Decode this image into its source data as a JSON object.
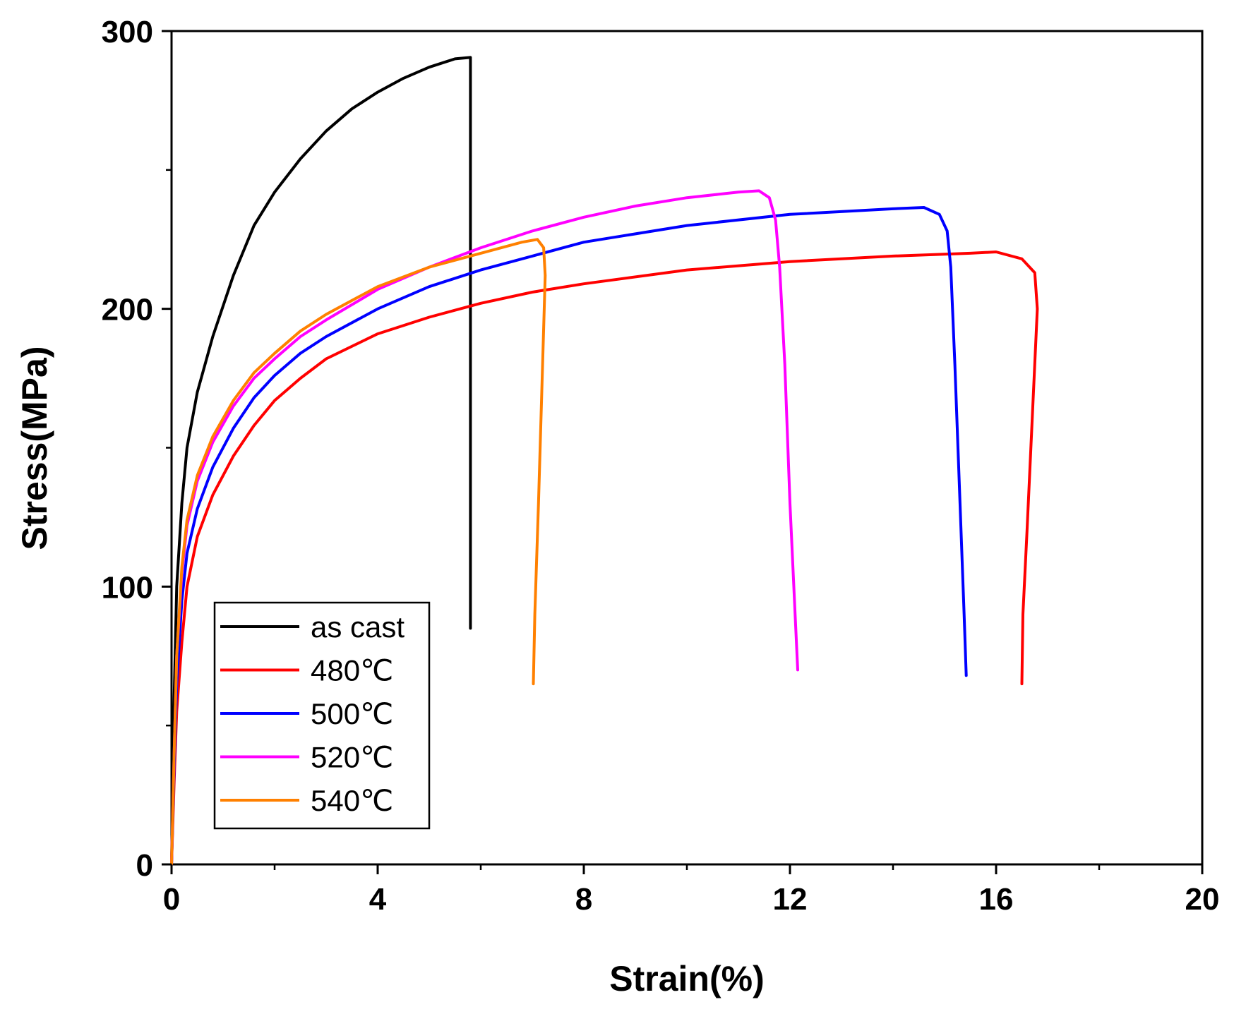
{
  "chart_data": {
    "type": "line",
    "title": "",
    "xlabel": "Strain(%)",
    "ylabel": "Stress(MPa)",
    "xlim": [
      0,
      20
    ],
    "ylim": [
      0,
      300
    ],
    "x_ticks": [
      0,
      4,
      8,
      12,
      16,
      20
    ],
    "x_tick_labels": [
      "0",
      "4",
      "8",
      "12",
      "16",
      "20"
    ],
    "y_ticks": [
      0,
      100,
      200,
      300
    ],
    "y_tick_labels": [
      "0",
      "100",
      "200",
      "300"
    ],
    "grid": false,
    "legend_position": "bottom-left",
    "series": [
      {
        "name": "as cast",
        "color": "#000000",
        "points": [
          [
            0,
            0
          ],
          [
            0.05,
            60
          ],
          [
            0.1,
            100
          ],
          [
            0.2,
            130
          ],
          [
            0.3,
            150
          ],
          [
            0.5,
            170
          ],
          [
            0.8,
            190
          ],
          [
            1.2,
            212
          ],
          [
            1.6,
            230
          ],
          [
            2.0,
            242
          ],
          [
            2.5,
            254
          ],
          [
            3.0,
            264
          ],
          [
            3.5,
            272
          ],
          [
            4.0,
            278
          ],
          [
            4.5,
            283
          ],
          [
            5.0,
            287
          ],
          [
            5.5,
            290
          ],
          [
            5.8,
            290.5
          ],
          [
            5.8,
            85
          ]
        ]
      },
      {
        "name": "480℃",
        "color": "#ff0000",
        "points": [
          [
            0,
            0
          ],
          [
            0.05,
            30
          ],
          [
            0.1,
            55
          ],
          [
            0.2,
            80
          ],
          [
            0.3,
            100
          ],
          [
            0.5,
            118
          ],
          [
            0.8,
            133
          ],
          [
            1.2,
            147
          ],
          [
            1.6,
            158
          ],
          [
            2.0,
            167
          ],
          [
            2.5,
            175
          ],
          [
            3.0,
            182
          ],
          [
            4.0,
            191
          ],
          [
            5.0,
            197
          ],
          [
            6.0,
            202
          ],
          [
            7.0,
            206
          ],
          [
            8.0,
            209
          ],
          [
            10.0,
            214
          ],
          [
            12.0,
            217
          ],
          [
            14.0,
            219
          ],
          [
            15.5,
            220
          ],
          [
            16.0,
            220.5
          ],
          [
            16.5,
            218
          ],
          [
            16.75,
            213
          ],
          [
            16.8,
            200
          ],
          [
            16.7,
            160
          ],
          [
            16.6,
            120
          ],
          [
            16.52,
            90
          ],
          [
            16.5,
            65
          ]
        ]
      },
      {
        "name": "500℃",
        "color": "#0000ff",
        "points": [
          [
            0,
            0
          ],
          [
            0.05,
            35
          ],
          [
            0.1,
            65
          ],
          [
            0.2,
            95
          ],
          [
            0.3,
            112
          ],
          [
            0.5,
            128
          ],
          [
            0.8,
            143
          ],
          [
            1.2,
            157
          ],
          [
            1.6,
            168
          ],
          [
            2.0,
            176
          ],
          [
            2.5,
            184
          ],
          [
            3.0,
            190
          ],
          [
            4.0,
            200
          ],
          [
            5.0,
            208
          ],
          [
            6.0,
            214
          ],
          [
            7.0,
            219
          ],
          [
            8.0,
            224
          ],
          [
            10.0,
            230
          ],
          [
            12.0,
            234
          ],
          [
            14.0,
            236
          ],
          [
            14.6,
            236.5
          ],
          [
            14.9,
            234
          ],
          [
            15.05,
            228
          ],
          [
            15.12,
            215
          ],
          [
            15.2,
            180
          ],
          [
            15.3,
            130
          ],
          [
            15.38,
            90
          ],
          [
            15.42,
            68
          ]
        ]
      },
      {
        "name": "520℃",
        "color": "#ff00ff",
        "points": [
          [
            0,
            0
          ],
          [
            0.05,
            40
          ],
          [
            0.1,
            75
          ],
          [
            0.2,
            105
          ],
          [
            0.3,
            122
          ],
          [
            0.5,
            138
          ],
          [
            0.8,
            152
          ],
          [
            1.2,
            165
          ],
          [
            1.6,
            175
          ],
          [
            2.0,
            182
          ],
          [
            2.5,
            190
          ],
          [
            3.0,
            196
          ],
          [
            4.0,
            207
          ],
          [
            5.0,
            215
          ],
          [
            6.0,
            222
          ],
          [
            7.0,
            228
          ],
          [
            8.0,
            233
          ],
          [
            9.0,
            237
          ],
          [
            10.0,
            240
          ],
          [
            11.0,
            242
          ],
          [
            11.4,
            242.5
          ],
          [
            11.6,
            240
          ],
          [
            11.72,
            232
          ],
          [
            11.8,
            215
          ],
          [
            11.9,
            180
          ],
          [
            12.0,
            130
          ],
          [
            12.1,
            90
          ],
          [
            12.15,
            70
          ]
        ]
      },
      {
        "name": "540℃",
        "color": "#ff8000",
        "points": [
          [
            0,
            0
          ],
          [
            0.05,
            40
          ],
          [
            0.1,
            75
          ],
          [
            0.2,
            107
          ],
          [
            0.3,
            124
          ],
          [
            0.5,
            140
          ],
          [
            0.8,
            154
          ],
          [
            1.2,
            167
          ],
          [
            1.6,
            177
          ],
          [
            2.0,
            184
          ],
          [
            2.5,
            192
          ],
          [
            3.0,
            198
          ],
          [
            4.0,
            208
          ],
          [
            5.0,
            215
          ],
          [
            6.0,
            220
          ],
          [
            6.8,
            224
          ],
          [
            7.1,
            225
          ],
          [
            7.22,
            222
          ],
          [
            7.25,
            212
          ],
          [
            7.2,
            180
          ],
          [
            7.12,
            130
          ],
          [
            7.05,
            90
          ],
          [
            7.02,
            65
          ]
        ]
      }
    ]
  }
}
